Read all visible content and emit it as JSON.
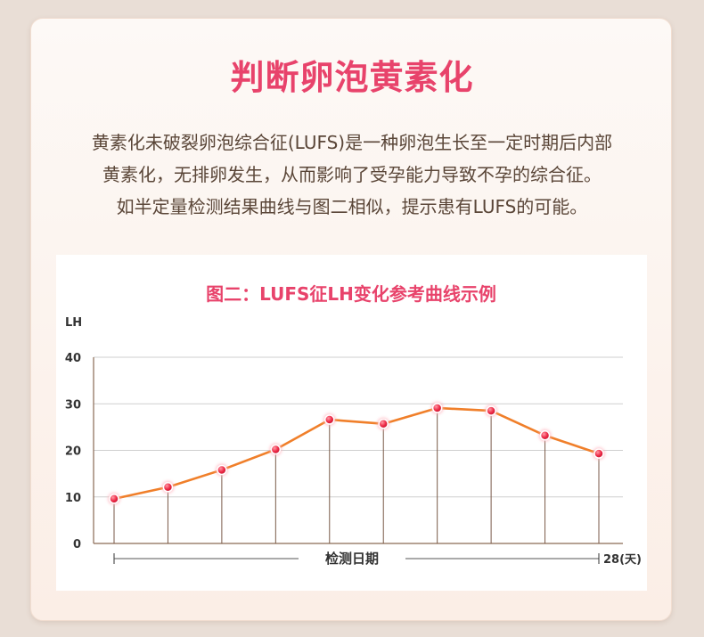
{
  "header": {
    "title": "判断卵泡黄素化"
  },
  "description": [
    "黄素化未破裂卵泡综合征(LUFS)是一种卵泡生长至一定时期后内部",
    "黄素化，无排卵发生，从而影响了受孕能力导致不孕的综合征。",
    "如半定量检测结果曲线与图二相似，提示患有LUFS的可能。"
  ],
  "colors": {
    "title": "#e8436b",
    "line": "#f07f2a",
    "point": "#ee2a47",
    "text": "#5a4638"
  },
  "chart_data": {
    "type": "line",
    "title": "图二：LUFS征LH变化参考曲线示例",
    "ylabel": "LH",
    "xlabel": "检测日期",
    "x_end_label": "28(天)",
    "ylim": [
      0,
      40
    ],
    "yticks": [
      0,
      10,
      20,
      30,
      40
    ],
    "grid": true,
    "series": [
      {
        "values": [
          9.6,
          12.1,
          15.8,
          20.2,
          26.6,
          25.7,
          29.1,
          28.5,
          23.2,
          19.3
        ]
      }
    ]
  }
}
